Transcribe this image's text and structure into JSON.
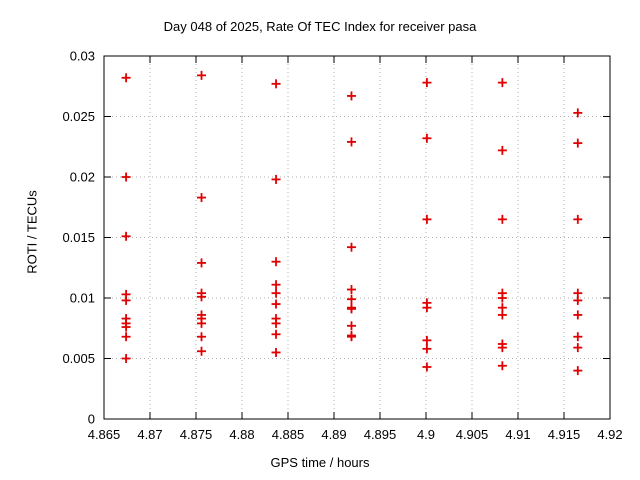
{
  "chart_data": {
    "type": "scatter",
    "title": "Day 048 of 2025, Rate Of TEC Index for receiver pasa",
    "xlabel": "GPS time / hours",
    "ylabel": "ROTI / TECUs",
    "xlim": [
      4.865,
      4.92
    ],
    "ylim": [
      0,
      0.03
    ],
    "xticks": [
      4.865,
      4.87,
      4.875,
      4.88,
      4.885,
      4.89,
      4.895,
      4.9,
      4.905,
      4.91,
      4.915,
      4.92
    ],
    "xtick_labels": [
      "4.865",
      "4.87",
      "4.875",
      "4.88",
      "4.885",
      "4.89",
      "4.895",
      "4.9",
      "4.905",
      "4.91",
      "4.915",
      "4.92"
    ],
    "yticks": [
      0,
      0.005,
      0.01,
      0.015,
      0.02,
      0.025,
      0.03
    ],
    "ytick_labels": [
      "0",
      "0.005",
      "0.01",
      "0.015",
      "0.02",
      "0.025",
      "0.03"
    ],
    "grid": true,
    "legend": "none",
    "colors": {
      "marker": "#e00000",
      "grid": "#b0b0b0",
      "axis": "#000000",
      "background": "#ffffff"
    },
    "marker": {
      "symbol": "plus",
      "color": "#e00000",
      "size": 9
    },
    "series": [
      {
        "name": "ROTI",
        "points": [
          [
            4.8674,
            0.0282
          ],
          [
            4.8674,
            0.02
          ],
          [
            4.8674,
            0.0151
          ],
          [
            4.8674,
            0.0103
          ],
          [
            4.8674,
            0.0098
          ],
          [
            4.8674,
            0.0083
          ],
          [
            4.8674,
            0.0079
          ],
          [
            4.8674,
            0.0076
          ],
          [
            4.8674,
            0.0068
          ],
          [
            4.8674,
            0.005
          ],
          [
            4.8756,
            0.0284
          ],
          [
            4.8756,
            0.0183
          ],
          [
            4.8756,
            0.0129
          ],
          [
            4.8756,
            0.0104
          ],
          [
            4.8756,
            0.0101
          ],
          [
            4.8756,
            0.0086
          ],
          [
            4.8756,
            0.0083
          ],
          [
            4.8756,
            0.0079
          ],
          [
            4.8756,
            0.0068
          ],
          [
            4.8756,
            0.0056
          ],
          [
            4.8837,
            0.0277
          ],
          [
            4.8837,
            0.0198
          ],
          [
            4.8837,
            0.013
          ],
          [
            4.8837,
            0.0111
          ],
          [
            4.8837,
            0.0104
          ],
          [
            4.8837,
            0.0095
          ],
          [
            4.8837,
            0.0083
          ],
          [
            4.8837,
            0.0079
          ],
          [
            4.8837,
            0.007
          ],
          [
            4.8837,
            0.0055
          ],
          [
            4.8919,
            0.0267
          ],
          [
            4.8919,
            0.0229
          ],
          [
            4.8919,
            0.0142
          ],
          [
            4.8919,
            0.0107
          ],
          [
            4.8919,
            0.0099
          ],
          [
            4.8919,
            0.0092
          ],
          [
            4.8919,
            0.0091
          ],
          [
            4.8919,
            0.0077
          ],
          [
            4.8919,
            0.0069
          ],
          [
            4.8919,
            0.0068
          ],
          [
            4.9001,
            0.0278
          ],
          [
            4.9001,
            0.0232
          ],
          [
            4.9001,
            0.0165
          ],
          [
            4.9001,
            0.0096
          ],
          [
            4.9001,
            0.0092
          ],
          [
            4.9001,
            0.0065
          ],
          [
            4.9001,
            0.0058
          ],
          [
            4.9001,
            0.0043
          ],
          [
            4.9083,
            0.0278
          ],
          [
            4.9083,
            0.0222
          ],
          [
            4.9083,
            0.0165
          ],
          [
            4.9083,
            0.0104
          ],
          [
            4.9083,
            0.01
          ],
          [
            4.9083,
            0.0092
          ],
          [
            4.9083,
            0.0086
          ],
          [
            4.9083,
            0.0062
          ],
          [
            4.9083,
            0.0059
          ],
          [
            4.9083,
            0.0044
          ],
          [
            4.9165,
            0.0253
          ],
          [
            4.9165,
            0.0228
          ],
          [
            4.9165,
            0.0165
          ],
          [
            4.9165,
            0.0104
          ],
          [
            4.9165,
            0.0098
          ],
          [
            4.9165,
            0.0086
          ],
          [
            4.9165,
            0.0068
          ],
          [
            4.9165,
            0.0059
          ],
          [
            4.9165,
            0.004
          ]
        ]
      }
    ]
  }
}
